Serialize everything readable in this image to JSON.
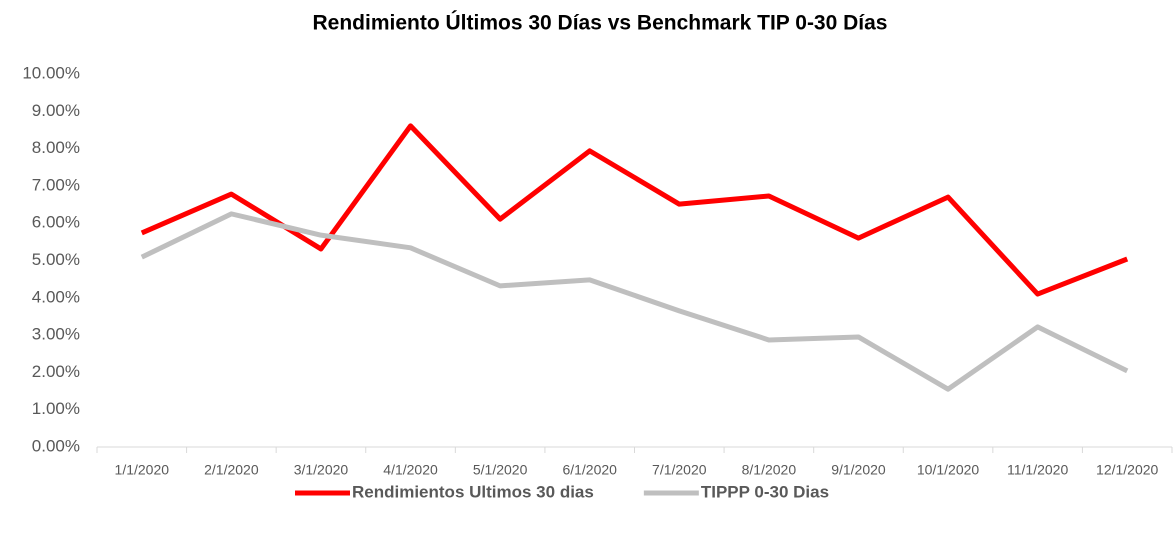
{
  "chart_data": {
    "type": "line",
    "title": "Rendimiento Últimos 30 Días vs Benchmark TIP 0-30 Días",
    "categories": [
      "1/1/2020",
      "2/1/2020",
      "3/1/2020",
      "4/1/2020",
      "5/1/2020",
      "6/1/2020",
      "7/1/2020",
      "8/1/2020",
      "9/1/2020",
      "10/1/2020",
      "11/1/2020",
      "12/1/2020"
    ],
    "series": [
      {
        "name": "Rendimientos Ultimos 30 dias",
        "color": "#ff0000",
        "values": [
          5.74,
          6.78,
          5.31,
          8.61,
          6.11,
          7.94,
          6.51,
          6.73,
          5.6,
          6.7,
          4.1,
          5.04
        ]
      },
      {
        "name": "TIPPP 0-30 Dias",
        "color": "#bfbfbf",
        "values": [
          5.09,
          6.25,
          5.68,
          5.34,
          4.32,
          4.48,
          3.65,
          2.87,
          2.95,
          1.55,
          3.22,
          2.04
        ]
      }
    ],
    "ylim": [
      0,
      10
    ],
    "yticks": [
      {
        "value": 0,
        "label": "0.00%"
      },
      {
        "value": 1,
        "label": "1.00%"
      },
      {
        "value": 2,
        "label": "2.00%"
      },
      {
        "value": 3,
        "label": "3.00%"
      },
      {
        "value": 4,
        "label": "4.00%"
      },
      {
        "value": 5,
        "label": "5.00%"
      },
      {
        "value": 6,
        "label": "6.00%"
      },
      {
        "value": 7,
        "label": "7.00%"
      },
      {
        "value": 8,
        "label": "8.00%"
      },
      {
        "value": 9,
        "label": "9.00%"
      },
      {
        "value": 10,
        "label": "10.00%"
      }
    ],
    "grid": false,
    "legend": "bottom"
  }
}
